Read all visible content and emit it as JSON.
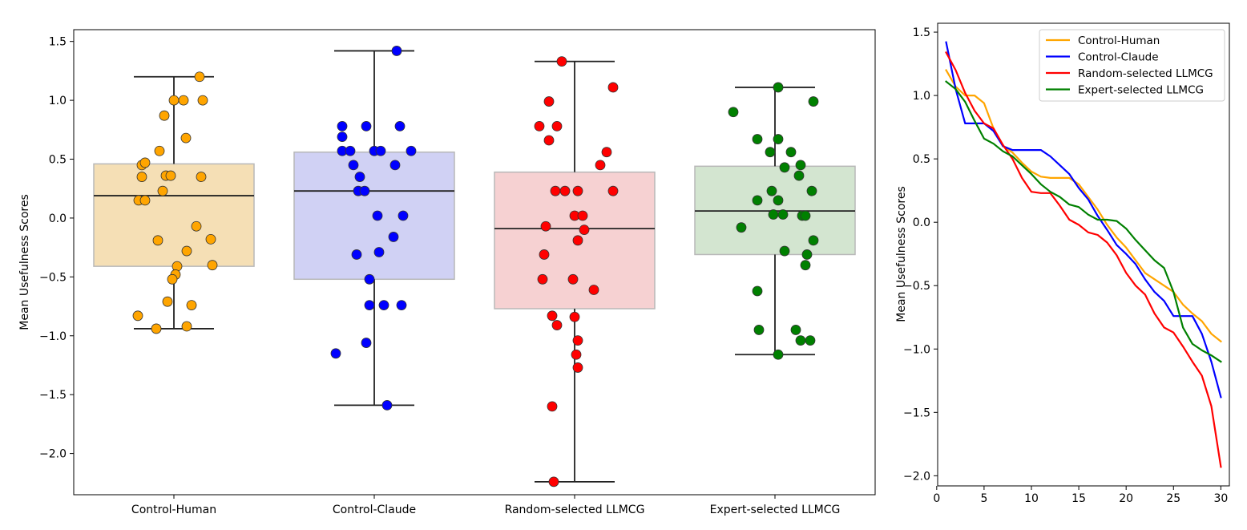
{
  "chart_data": [
    {
      "type": "box",
      "title": "",
      "xlabel": "",
      "ylabel": "Mean Usefulness Scores",
      "ylim": [
        -2.35,
        1.6
      ],
      "yticks": [
        1.5,
        1.0,
        0.5,
        0.0,
        -0.5,
        -1.0,
        -1.5,
        -2.0
      ],
      "ytick_labels": [
        "1.5",
        "1.0",
        "0.5",
        "0.0",
        "−0.5",
        "−1.0",
        "−1.5",
        "−2.0"
      ],
      "grid": false,
      "groups": [
        {
          "name": "Control-Human",
          "box_color": "#f5dfb5",
          "point_color": "#ffa500",
          "q1": -0.41,
          "median": 0.19,
          "q3": 0.46,
          "whisker_low": -0.94,
          "whisker_high": 1.2,
          "points": [
            {
              "j": 0.32,
              "y": 1.2
            },
            {
              "j": 0.0,
              "y": 1.0
            },
            {
              "j": 0.12,
              "y": 1.0
            },
            {
              "j": 0.36,
              "y": 1.0
            },
            {
              "j": -0.12,
              "y": 0.87
            },
            {
              "j": 0.15,
              "y": 0.68
            },
            {
              "j": -0.18,
              "y": 0.57
            },
            {
              "j": -0.4,
              "y": 0.45
            },
            {
              "j": -0.36,
              "y": 0.47
            },
            {
              "j": -0.4,
              "y": 0.35
            },
            {
              "j": -0.1,
              "y": 0.36
            },
            {
              "j": -0.04,
              "y": 0.36
            },
            {
              "j": 0.34,
              "y": 0.35
            },
            {
              "j": -0.14,
              "y": 0.23
            },
            {
              "j": -0.44,
              "y": 0.15
            },
            {
              "j": -0.36,
              "y": 0.15
            },
            {
              "j": 0.28,
              "y": -0.07
            },
            {
              "j": -0.2,
              "y": -0.19
            },
            {
              "j": 0.46,
              "y": -0.18
            },
            {
              "j": 0.16,
              "y": -0.28
            },
            {
              "j": 0.04,
              "y": -0.41
            },
            {
              "j": 0.48,
              "y": -0.4
            },
            {
              "j": 0.02,
              "y": -0.48
            },
            {
              "j": -0.02,
              "y": -0.52
            },
            {
              "j": -0.08,
              "y": -0.71
            },
            {
              "j": 0.22,
              "y": -0.74
            },
            {
              "j": -0.45,
              "y": -0.83
            },
            {
              "j": -0.22,
              "y": -0.94
            },
            {
              "j": 0.16,
              "y": -0.92
            }
          ]
        },
        {
          "name": "Control-Claude",
          "box_color": "#d0d1f4",
          "point_color": "#0000ff",
          "q1": -0.52,
          "median": 0.23,
          "q3": 0.56,
          "whisker_low": -1.59,
          "whisker_high": 1.42,
          "points": [
            {
              "j": 0.28,
              "y": 1.42
            },
            {
              "j": -0.4,
              "y": 0.78
            },
            {
              "j": -0.1,
              "y": 0.78
            },
            {
              "j": 0.32,
              "y": 0.78
            },
            {
              "j": -0.4,
              "y": 0.69
            },
            {
              "j": -0.4,
              "y": 0.57
            },
            {
              "j": -0.3,
              "y": 0.57
            },
            {
              "j": 0.0,
              "y": 0.57
            },
            {
              "j": 0.08,
              "y": 0.57
            },
            {
              "j": 0.46,
              "y": 0.57
            },
            {
              "j": -0.26,
              "y": 0.45
            },
            {
              "j": 0.26,
              "y": 0.45
            },
            {
              "j": -0.18,
              "y": 0.35
            },
            {
              "j": -0.2,
              "y": 0.23
            },
            {
              "j": -0.12,
              "y": 0.23
            },
            {
              "j": 0.04,
              "y": 0.02
            },
            {
              "j": 0.36,
              "y": 0.02
            },
            {
              "j": 0.24,
              "y": -0.16
            },
            {
              "j": 0.06,
              "y": -0.29
            },
            {
              "j": -0.22,
              "y": -0.31
            },
            {
              "j": -0.06,
              "y": -0.52
            },
            {
              "j": -0.06,
              "y": -0.74
            },
            {
              "j": 0.12,
              "y": -0.74
            },
            {
              "j": 0.34,
              "y": -0.74
            },
            {
              "j": -0.1,
              "y": -1.06
            },
            {
              "j": -0.48,
              "y": -1.15
            },
            {
              "j": 0.16,
              "y": -1.59
            }
          ]
        },
        {
          "name": "Random-selected LLMCG",
          "box_color": "#f6d1d2",
          "point_color": "#ff0000",
          "q1": -0.77,
          "median": -0.09,
          "q3": 0.39,
          "whisker_low": -2.24,
          "whisker_high": 1.33,
          "points": [
            {
              "j": -0.16,
              "y": 1.33
            },
            {
              "j": 0.48,
              "y": 1.11
            },
            {
              "j": -0.32,
              "y": 0.99
            },
            {
              "j": -0.44,
              "y": 0.78
            },
            {
              "j": -0.22,
              "y": 0.78
            },
            {
              "j": -0.32,
              "y": 0.66
            },
            {
              "j": 0.4,
              "y": 0.56
            },
            {
              "j": 0.32,
              "y": 0.45
            },
            {
              "j": -0.24,
              "y": 0.23
            },
            {
              "j": -0.12,
              "y": 0.23
            },
            {
              "j": 0.04,
              "y": 0.23
            },
            {
              "j": 0.48,
              "y": 0.23
            },
            {
              "j": 0.0,
              "y": 0.02
            },
            {
              "j": 0.1,
              "y": 0.02
            },
            {
              "j": -0.36,
              "y": -0.07
            },
            {
              "j": 0.12,
              "y": -0.1
            },
            {
              "j": 0.04,
              "y": -0.19
            },
            {
              "j": -0.38,
              "y": -0.31
            },
            {
              "j": -0.4,
              "y": -0.52
            },
            {
              "j": -0.02,
              "y": -0.52
            },
            {
              "j": 0.24,
              "y": -0.61
            },
            {
              "j": -0.28,
              "y": -0.83
            },
            {
              "j": 0.0,
              "y": -0.84
            },
            {
              "j": -0.22,
              "y": -0.91
            },
            {
              "j": 0.04,
              "y": -1.04
            },
            {
              "j": 0.02,
              "y": -1.16
            },
            {
              "j": 0.04,
              "y": -1.27
            },
            {
              "j": -0.28,
              "y": -1.6
            },
            {
              "j": -0.26,
              "y": -2.24
            }
          ]
        },
        {
          "name": "Expert-selected LLMCG",
          "box_color": "#d3e5d0",
          "point_color": "#008000",
          "q1": -0.31,
          "median": 0.06,
          "q3": 0.44,
          "whisker_low": -1.16,
          "whisker_high": 1.11,
          "points": [
            {
              "j": 0.04,
              "y": 1.11
            },
            {
              "j": 0.48,
              "y": 0.99
            },
            {
              "j": -0.52,
              "y": 0.9
            },
            {
              "j": -0.22,
              "y": 0.67
            },
            {
              "j": 0.04,
              "y": 0.67
            },
            {
              "j": -0.06,
              "y": 0.56
            },
            {
              "j": 0.2,
              "y": 0.56
            },
            {
              "j": 0.32,
              "y": 0.45
            },
            {
              "j": 0.12,
              "y": 0.43
            },
            {
              "j": 0.3,
              "y": 0.36
            },
            {
              "j": -0.04,
              "y": 0.23
            },
            {
              "j": 0.46,
              "y": 0.23
            },
            {
              "j": -0.22,
              "y": 0.15
            },
            {
              "j": 0.04,
              "y": 0.15
            },
            {
              "j": -0.02,
              "y": 0.03
            },
            {
              "j": 0.1,
              "y": 0.03
            },
            {
              "j": 0.34,
              "y": 0.02
            },
            {
              "j": 0.38,
              "y": 0.02
            },
            {
              "j": -0.42,
              "y": -0.08
            },
            {
              "j": 0.48,
              "y": -0.19
            },
            {
              "j": 0.12,
              "y": -0.28
            },
            {
              "j": 0.4,
              "y": -0.31
            },
            {
              "j": 0.38,
              "y": -0.4
            },
            {
              "j": -0.22,
              "y": -0.62
            },
            {
              "j": -0.2,
              "y": -0.95
            },
            {
              "j": 0.26,
              "y": -0.95
            },
            {
              "j": 0.32,
              "y": -1.04
            },
            {
              "j": 0.44,
              "y": -1.04
            },
            {
              "j": 0.04,
              "y": -1.16
            }
          ]
        }
      ]
    },
    {
      "type": "line",
      "title": "",
      "xlabel": "",
      "ylabel": "Mean Usefulness Scores",
      "xlim": [
        0.1,
        30.9
      ],
      "ylim": [
        -2.08,
        1.57
      ],
      "xticks": [
        0,
        5,
        10,
        15,
        20,
        25,
        30
      ],
      "xtick_labels": [
        "0",
        "5",
        "10",
        "15",
        "20",
        "25",
        "30"
      ],
      "yticks": [
        1.5,
        1.0,
        0.5,
        0.0,
        -0.5,
        -1.0,
        -1.5,
        -2.0
      ],
      "ytick_labels": [
        "1.5",
        "1.0",
        "0.5",
        "0.0",
        "−0.5",
        "−1.0",
        "−1.5",
        "−2.0"
      ],
      "grid": false,
      "legend_position": "top-right",
      "series": [
        {
          "name": "Control-Human",
          "color": "#ffa500",
          "x": [
            1,
            2,
            3,
            4,
            5,
            6,
            7,
            8,
            9,
            10,
            11,
            12,
            13,
            14,
            15,
            16,
            17,
            18,
            19,
            20,
            21,
            22,
            23,
            24,
            25,
            26,
            27,
            28,
            29,
            30
          ],
          "values": [
            1.2,
            1.07,
            1.0,
            1.0,
            0.94,
            0.74,
            0.6,
            0.55,
            0.47,
            0.4,
            0.36,
            0.35,
            0.35,
            0.35,
            0.3,
            0.2,
            0.1,
            -0.02,
            -0.12,
            -0.2,
            -0.3,
            -0.4,
            -0.45,
            -0.5,
            -0.55,
            -0.65,
            -0.72,
            -0.78,
            -0.88,
            -0.94
          ]
        },
        {
          "name": "Control-Claude",
          "color": "#0000ff",
          "x": [
            1,
            2,
            3,
            4,
            5,
            6,
            7,
            8,
            9,
            10,
            11,
            12,
            13,
            14,
            15,
            16,
            17,
            18,
            19,
            20,
            21,
            22,
            23,
            24,
            25,
            26,
            27,
            28,
            29,
            30
          ],
          "values": [
            1.42,
            1.05,
            0.78,
            0.78,
            0.78,
            0.72,
            0.6,
            0.57,
            0.57,
            0.57,
            0.57,
            0.52,
            0.45,
            0.38,
            0.27,
            0.18,
            0.05,
            -0.06,
            -0.18,
            -0.25,
            -0.33,
            -0.45,
            -0.55,
            -0.62,
            -0.74,
            -0.74,
            -0.74,
            -0.88,
            -1.1,
            -1.38
          ]
        },
        {
          "name": "Random-selected LLMCG",
          "color": "#ff0000",
          "x": [
            1,
            2,
            3,
            4,
            5,
            6,
            7,
            8,
            9,
            10,
            11,
            12,
            13,
            14,
            15,
            16,
            17,
            18,
            19,
            20,
            21,
            22,
            23,
            24,
            25,
            26,
            27,
            28,
            29,
            30
          ],
          "values": [
            1.34,
            1.2,
            1.02,
            0.88,
            0.78,
            0.74,
            0.61,
            0.5,
            0.35,
            0.24,
            0.23,
            0.23,
            0.13,
            0.02,
            -0.02,
            -0.08,
            -0.1,
            -0.16,
            -0.26,
            -0.4,
            -0.5,
            -0.57,
            -0.72,
            -0.83,
            -0.87,
            -0.98,
            -1.1,
            -1.21,
            -1.45,
            -1.93
          ]
        },
        {
          "name": "Expert-selected LLMCG",
          "color": "#008000",
          "x": [
            1,
            2,
            3,
            4,
            5,
            6,
            7,
            8,
            9,
            10,
            11,
            12,
            13,
            14,
            15,
            16,
            17,
            18,
            19,
            20,
            21,
            22,
            23,
            24,
            25,
            26,
            27,
            28,
            29,
            30
          ],
          "values": [
            1.11,
            1.05,
            0.95,
            0.8,
            0.66,
            0.62,
            0.56,
            0.52,
            0.45,
            0.38,
            0.3,
            0.24,
            0.2,
            0.14,
            0.12,
            0.06,
            0.02,
            0.02,
            0.01,
            -0.05,
            -0.14,
            -0.22,
            -0.3,
            -0.36,
            -0.55,
            -0.83,
            -0.96,
            -1.01,
            -1.05,
            -1.1
          ]
        }
      ]
    }
  ]
}
